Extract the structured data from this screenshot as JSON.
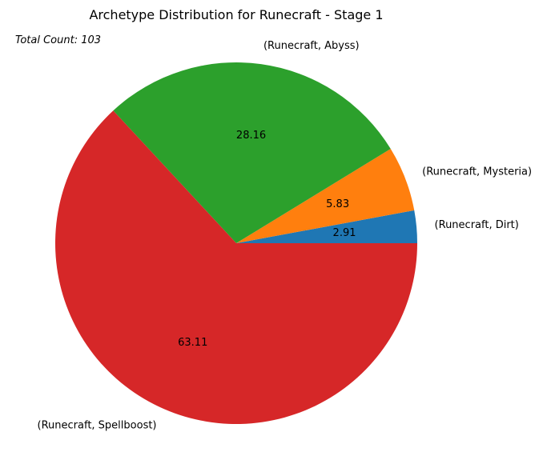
{
  "chart_data": {
    "type": "pie",
    "title": "Archetype Distribution for Runecraft - Stage 1",
    "annotation": "Total Count: 103",
    "slices": [
      {
        "label": "(Runecraft, Dirt)",
        "value": 2.91,
        "pct_label": "2.91",
        "color": "#1f77b4"
      },
      {
        "label": "(Runecraft, Mysteria)",
        "value": 5.83,
        "pct_label": "5.83",
        "color": "#ff7f0e"
      },
      {
        "label": "(Runecraft, Abyss)",
        "value": 28.16,
        "pct_label": "28.16",
        "color": "#2ca02c"
      },
      {
        "label": "(Runecraft, Spellboost)",
        "value": 63.11,
        "pct_label": "63.11",
        "color": "#d62728"
      }
    ],
    "start_angle": 0,
    "direction": "counterclockwise"
  }
}
